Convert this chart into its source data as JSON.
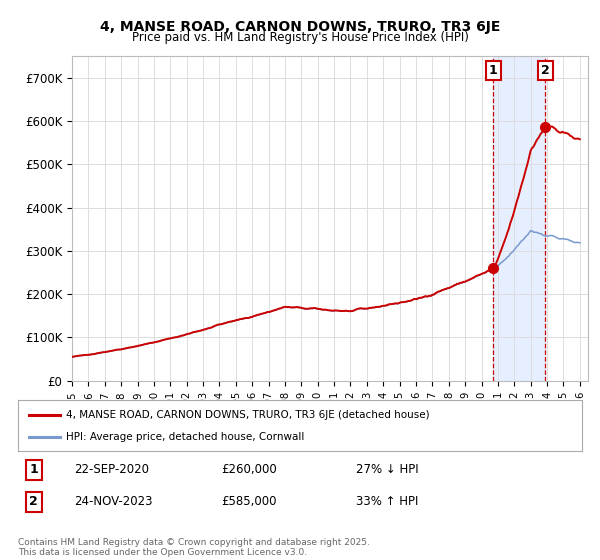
{
  "title": "4, MANSE ROAD, CARNON DOWNS, TRURO, TR3 6JE",
  "subtitle": "Price paid vs. HM Land Registry's House Price Index (HPI)",
  "legend_label_red": "4, MANSE ROAD, CARNON DOWNS, TRURO, TR3 6JE (detached house)",
  "legend_label_blue": "HPI: Average price, detached house, Cornwall",
  "transaction1_date": "22-SEP-2020",
  "transaction1_price": "£260,000",
  "transaction1_hpi": "27% ↓ HPI",
  "transaction2_date": "24-NOV-2023",
  "transaction2_price": "£585,000",
  "transaction2_hpi": "33% ↑ HPI",
  "footnote": "Contains HM Land Registry data © Crown copyright and database right 2025.\nThis data is licensed under the Open Government Licence v3.0.",
  "ylim": [
    0,
    750000
  ],
  "yticks": [
    0,
    100000,
    200000,
    300000,
    400000,
    500000,
    600000,
    700000
  ],
  "ytick_labels": [
    "£0",
    "£100K",
    "£200K",
    "£300K",
    "£400K",
    "£500K",
    "£600K",
    "£700K"
  ],
  "xlim_start": 1995.0,
  "xlim_end": 2026.5,
  "marker1_x": 2020.72,
  "marker1_y": 260000,
  "marker2_x": 2023.9,
  "marker2_y": 585000,
  "vline1_x": 2020.72,
  "vline2_x": 2023.9,
  "background_color": "#ffffff",
  "plot_bg_color": "#ffffff",
  "grid_color": "#dddddd",
  "red_color": "#cc0000",
  "blue_color": "#7799cc",
  "span_color": "#cce0ff",
  "vline_color": "#cc0000"
}
